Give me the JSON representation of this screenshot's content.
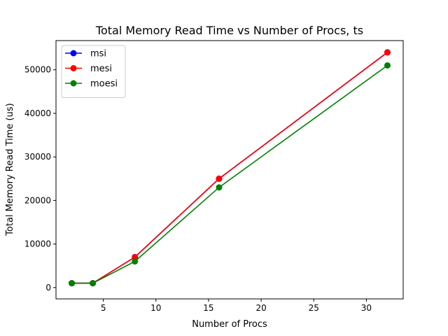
{
  "chart_data": {
    "type": "line",
    "title": "Total Memory Read Time vs Number of Procs, ts",
    "xlabel": "Number of Procs",
    "ylabel": "Total Memory Read Time (us)",
    "xlim": [
      0.5,
      33.5
    ],
    "ylim": [
      -2600,
      56700
    ],
    "xticks": [
      5,
      10,
      15,
      20,
      25,
      30
    ],
    "yticks": [
      0,
      10000,
      20000,
      30000,
      40000,
      50000
    ],
    "legend_position": "top-left",
    "grid": false,
    "x": [
      2,
      4,
      8,
      16,
      32
    ],
    "series": [
      {
        "name": "msi",
        "color": "#0000ff",
        "values": [
          1000,
          1000,
          7000,
          25000,
          54000
        ]
      },
      {
        "name": "mesi",
        "color": "#ff0000",
        "values": [
          1000,
          1000,
          7000,
          25000,
          54000
        ]
      },
      {
        "name": "moesi",
        "color": "#008000",
        "values": [
          1000,
          1000,
          6000,
          23000,
          51000
        ]
      }
    ]
  }
}
